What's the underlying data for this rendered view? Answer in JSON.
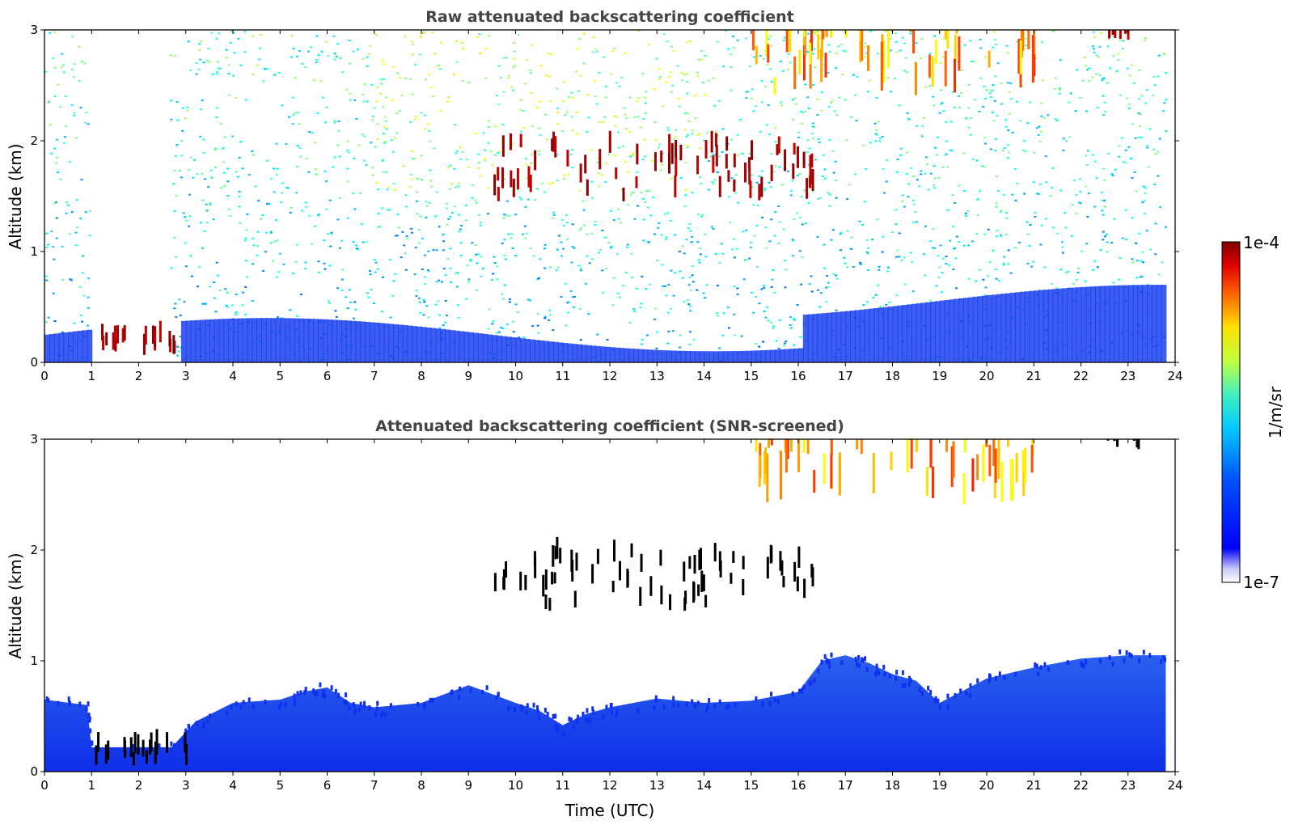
{
  "chart_data": [
    {
      "type": "heatmap",
      "title": "Raw attenuated backscattering coefficient",
      "xlabel": "",
      "ylabel": "Altitude (km)",
      "xlim": [
        0,
        24
      ],
      "ylim": [
        0,
        3
      ],
      "x_ticks": [
        "0",
        "1",
        "2",
        "3",
        "4",
        "5",
        "6",
        "7",
        "8",
        "9",
        "10",
        "11",
        "12",
        "13",
        "14",
        "15",
        "16",
        "17",
        "18",
        "19",
        "20",
        "21",
        "22",
        "23",
        "24"
      ],
      "y_ticks": [
        "0",
        "1",
        "2",
        "3"
      ],
      "features": [
        {
          "desc": "fog/low cloud layer",
          "x": [
            1.0,
            3.0
          ],
          "y": [
            0.05,
            0.2
          ],
          "level": "high"
        },
        {
          "desc": "scattered clouds",
          "x": [
            9.5,
            16.3
          ],
          "y": [
            1.45,
            1.95
          ],
          "level": "high"
        },
        {
          "desc": "high cloud fall streaks",
          "x": [
            15.0,
            21.0
          ],
          "y": [
            2.4,
            3.0
          ],
          "level": "medium"
        },
        {
          "desc": "cloud top",
          "x": [
            22.5,
            23.3
          ],
          "y": [
            2.9,
            3.0
          ],
          "level": "high"
        }
      ]
    },
    {
      "type": "heatmap",
      "title": "Attenuated backscattering coefficient (SNR-screened)",
      "xlabel": "Time (UTC)",
      "ylabel": "Altitude (km)",
      "xlim": [
        0,
        24
      ],
      "ylim": [
        0,
        3
      ],
      "x_ticks": [
        "0",
        "1",
        "2",
        "3",
        "4",
        "5",
        "6",
        "7",
        "8",
        "9",
        "10",
        "11",
        "12",
        "13",
        "14",
        "15",
        "16",
        "17",
        "18",
        "19",
        "20",
        "21",
        "22",
        "23",
        "24"
      ],
      "y_ticks": [
        "0",
        "1",
        "2",
        "3"
      ],
      "boundary_layer_top_km": [
        [
          0,
          0.65
        ],
        [
          0.9,
          0.6
        ],
        [
          1.0,
          0.22
        ],
        [
          2.7,
          0.22
        ],
        [
          3.2,
          0.45
        ],
        [
          4,
          0.62
        ],
        [
          5,
          0.65
        ],
        [
          5.5,
          0.72
        ],
        [
          6,
          0.76
        ],
        [
          6.5,
          0.62
        ],
        [
          7,
          0.58
        ],
        [
          8,
          0.62
        ],
        [
          9,
          0.78
        ],
        [
          10,
          0.62
        ],
        [
          10.5,
          0.55
        ],
        [
          11,
          0.42
        ],
        [
          11.5,
          0.52
        ],
        [
          12,
          0.58
        ],
        [
          13,
          0.66
        ],
        [
          14,
          0.62
        ],
        [
          15,
          0.64
        ],
        [
          16,
          0.72
        ],
        [
          16.5,
          1.0
        ],
        [
          17,
          1.05
        ],
        [
          17.5,
          0.98
        ],
        [
          18,
          0.88
        ],
        [
          18.5,
          0.82
        ],
        [
          19,
          0.62
        ],
        [
          20,
          0.84
        ],
        [
          21,
          0.94
        ],
        [
          22,
          1.02
        ],
        [
          23,
          1.05
        ],
        [
          23.8,
          1.05
        ]
      ]
    }
  ],
  "colorbar": {
    "label": "1/m/sr",
    "max_label": "1e-4",
    "min_label": "1e-7",
    "colormap": "jet",
    "scale": "log"
  },
  "colors": {
    "low": "#0a1ef0",
    "mid": "#1aa0f0",
    "high": "#f0e020",
    "max": "#8b0000"
  }
}
